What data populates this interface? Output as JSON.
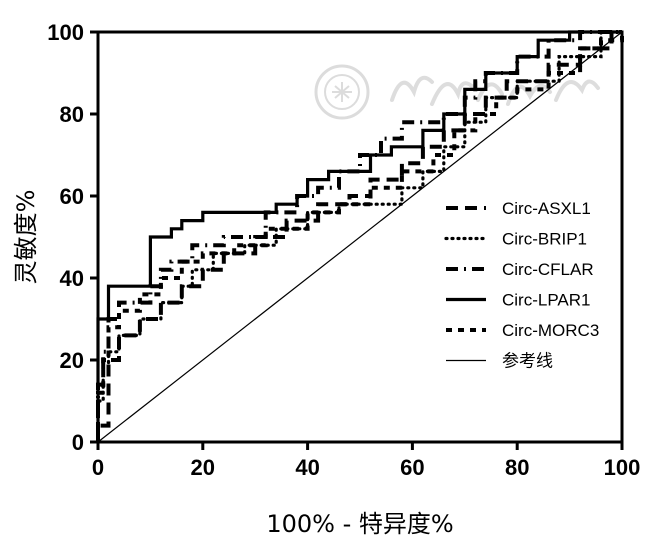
{
  "chart_data": {
    "type": "line",
    "xlabel": "100% - 特异度%",
    "ylabel": "灵敏度%",
    "xlim": [
      0,
      100
    ],
    "ylim": [
      0,
      100
    ],
    "xticks": [
      0,
      20,
      40,
      60,
      80,
      100
    ],
    "yticks": [
      0,
      20,
      40,
      60,
      80,
      100
    ],
    "legend_position": "right",
    "series": [
      {
        "name": "Circ-ASXL1",
        "style": "dashed",
        "points": [
          [
            0,
            0
          ],
          [
            0,
            4
          ],
          [
            2,
            4
          ],
          [
            2,
            20
          ],
          [
            4,
            20
          ],
          [
            4,
            26
          ],
          [
            8,
            26
          ],
          [
            8,
            30
          ],
          [
            12,
            30
          ],
          [
            12,
            34
          ],
          [
            16,
            34
          ],
          [
            16,
            38
          ],
          [
            20,
            38
          ],
          [
            20,
            42
          ],
          [
            24,
            42
          ],
          [
            24,
            46
          ],
          [
            30,
            46
          ],
          [
            30,
            50
          ],
          [
            36,
            50
          ],
          [
            36,
            54
          ],
          [
            42,
            54
          ],
          [
            42,
            58
          ],
          [
            48,
            58
          ],
          [
            48,
            60
          ],
          [
            52,
            60
          ],
          [
            52,
            64
          ],
          [
            58,
            64
          ],
          [
            58,
            68
          ],
          [
            62,
            68
          ],
          [
            62,
            72
          ],
          [
            66,
            72
          ],
          [
            66,
            76
          ],
          [
            70,
            76
          ],
          [
            70,
            80
          ],
          [
            74,
            80
          ],
          [
            74,
            84
          ],
          [
            78,
            84
          ],
          [
            78,
            88
          ],
          [
            86,
            88
          ],
          [
            86,
            92
          ],
          [
            92,
            92
          ],
          [
            92,
            96
          ],
          [
            98,
            96
          ],
          [
            98,
            100
          ],
          [
            100,
            100
          ]
        ]
      },
      {
        "name": "Circ-BRIP1",
        "style": "dotted",
        "points": [
          [
            0,
            0
          ],
          [
            0,
            10
          ],
          [
            1,
            10
          ],
          [
            1,
            18
          ],
          [
            2,
            18
          ],
          [
            2,
            22
          ],
          [
            4,
            22
          ],
          [
            4,
            26
          ],
          [
            8,
            26
          ],
          [
            8,
            30
          ],
          [
            12,
            30
          ],
          [
            12,
            34
          ],
          [
            16,
            34
          ],
          [
            16,
            38
          ],
          [
            18,
            38
          ],
          [
            18,
            42
          ],
          [
            22,
            42
          ],
          [
            22,
            46
          ],
          [
            28,
            46
          ],
          [
            28,
            48
          ],
          [
            34,
            48
          ],
          [
            34,
            52
          ],
          [
            40,
            52
          ],
          [
            40,
            56
          ],
          [
            46,
            56
          ],
          [
            46,
            58
          ],
          [
            58,
            58
          ],
          [
            58,
            62
          ],
          [
            62,
            62
          ],
          [
            62,
            66
          ],
          [
            66,
            66
          ],
          [
            66,
            72
          ],
          [
            70,
            72
          ],
          [
            70,
            78
          ],
          [
            74,
            78
          ],
          [
            74,
            84
          ],
          [
            80,
            84
          ],
          [
            80,
            88
          ],
          [
            88,
            88
          ],
          [
            88,
            94
          ],
          [
            96,
            94
          ],
          [
            96,
            100
          ],
          [
            100,
            100
          ]
        ]
      },
      {
        "name": "Circ-CFLAR",
        "style": "dashdot",
        "points": [
          [
            0,
            0
          ],
          [
            0,
            14
          ],
          [
            1,
            14
          ],
          [
            1,
            22
          ],
          [
            2,
            22
          ],
          [
            2,
            30
          ],
          [
            4,
            30
          ],
          [
            4,
            34
          ],
          [
            10,
            34
          ],
          [
            10,
            38
          ],
          [
            12,
            38
          ],
          [
            12,
            42
          ],
          [
            14,
            42
          ],
          [
            14,
            44
          ],
          [
            18,
            44
          ],
          [
            18,
            48
          ],
          [
            24,
            48
          ],
          [
            24,
            50
          ],
          [
            32,
            50
          ],
          [
            32,
            56
          ],
          [
            38,
            56
          ],
          [
            38,
            60
          ],
          [
            42,
            60
          ],
          [
            42,
            62
          ],
          [
            46,
            62
          ],
          [
            46,
            66
          ],
          [
            50,
            66
          ],
          [
            50,
            70
          ],
          [
            54,
            70
          ],
          [
            54,
            74
          ],
          [
            58,
            74
          ],
          [
            58,
            78
          ],
          [
            66,
            78
          ],
          [
            66,
            80
          ],
          [
            70,
            80
          ],
          [
            70,
            84
          ],
          [
            72,
            84
          ],
          [
            72,
            88
          ],
          [
            74,
            88
          ],
          [
            74,
            90
          ],
          [
            80,
            90
          ],
          [
            80,
            94
          ],
          [
            86,
            94
          ],
          [
            86,
            98
          ],
          [
            92,
            98
          ],
          [
            92,
            100
          ],
          [
            100,
            100
          ]
        ]
      },
      {
        "name": "Circ-LPAR1",
        "style": "solid",
        "points": [
          [
            0,
            0
          ],
          [
            0,
            30
          ],
          [
            2,
            30
          ],
          [
            2,
            38
          ],
          [
            10,
            38
          ],
          [
            10,
            50
          ],
          [
            14,
            50
          ],
          [
            14,
            52
          ],
          [
            16,
            52
          ],
          [
            16,
            54
          ],
          [
            20,
            54
          ],
          [
            20,
            56
          ],
          [
            34,
            56
          ],
          [
            34,
            58
          ],
          [
            38,
            58
          ],
          [
            38,
            60
          ],
          [
            40,
            60
          ],
          [
            40,
            64
          ],
          [
            44,
            64
          ],
          [
            44,
            66
          ],
          [
            52,
            66
          ],
          [
            52,
            70
          ],
          [
            56,
            70
          ],
          [
            56,
            72
          ],
          [
            62,
            72
          ],
          [
            62,
            76
          ],
          [
            66,
            76
          ],
          [
            66,
            80
          ],
          [
            70,
            80
          ],
          [
            70,
            86
          ],
          [
            74,
            86
          ],
          [
            74,
            90
          ],
          [
            80,
            90
          ],
          [
            80,
            94
          ],
          [
            84,
            94
          ],
          [
            84,
            98
          ],
          [
            90,
            98
          ],
          [
            90,
            100
          ],
          [
            100,
            100
          ]
        ]
      },
      {
        "name": "Circ-MORC3",
        "style": "dense-dash",
        "points": [
          [
            0,
            0
          ],
          [
            0,
            12
          ],
          [
            1,
            12
          ],
          [
            1,
            20
          ],
          [
            2,
            20
          ],
          [
            2,
            28
          ],
          [
            4,
            28
          ],
          [
            4,
            32
          ],
          [
            8,
            32
          ],
          [
            8,
            36
          ],
          [
            12,
            36
          ],
          [
            12,
            40
          ],
          [
            16,
            40
          ],
          [
            16,
            44
          ],
          [
            20,
            44
          ],
          [
            20,
            46
          ],
          [
            26,
            46
          ],
          [
            26,
            48
          ],
          [
            32,
            48
          ],
          [
            32,
            52
          ],
          [
            40,
            52
          ],
          [
            40,
            56
          ],
          [
            46,
            56
          ],
          [
            46,
            58
          ],
          [
            52,
            58
          ],
          [
            52,
            62
          ],
          [
            58,
            62
          ],
          [
            58,
            66
          ],
          [
            64,
            66
          ],
          [
            64,
            70
          ],
          [
            68,
            70
          ],
          [
            68,
            76
          ],
          [
            72,
            76
          ],
          [
            72,
            80
          ],
          [
            76,
            80
          ],
          [
            76,
            84
          ],
          [
            80,
            84
          ],
          [
            80,
            86
          ],
          [
            86,
            86
          ],
          [
            86,
            90
          ],
          [
            92,
            90
          ],
          [
            92,
            96
          ],
          [
            96,
            96
          ],
          [
            96,
            98
          ],
          [
            100,
            98
          ],
          [
            100,
            100
          ]
        ]
      },
      {
        "name": "参考线",
        "style": "thin-solid",
        "points": [
          [
            0,
            0
          ],
          [
            100,
            100
          ]
        ]
      }
    ]
  }
}
